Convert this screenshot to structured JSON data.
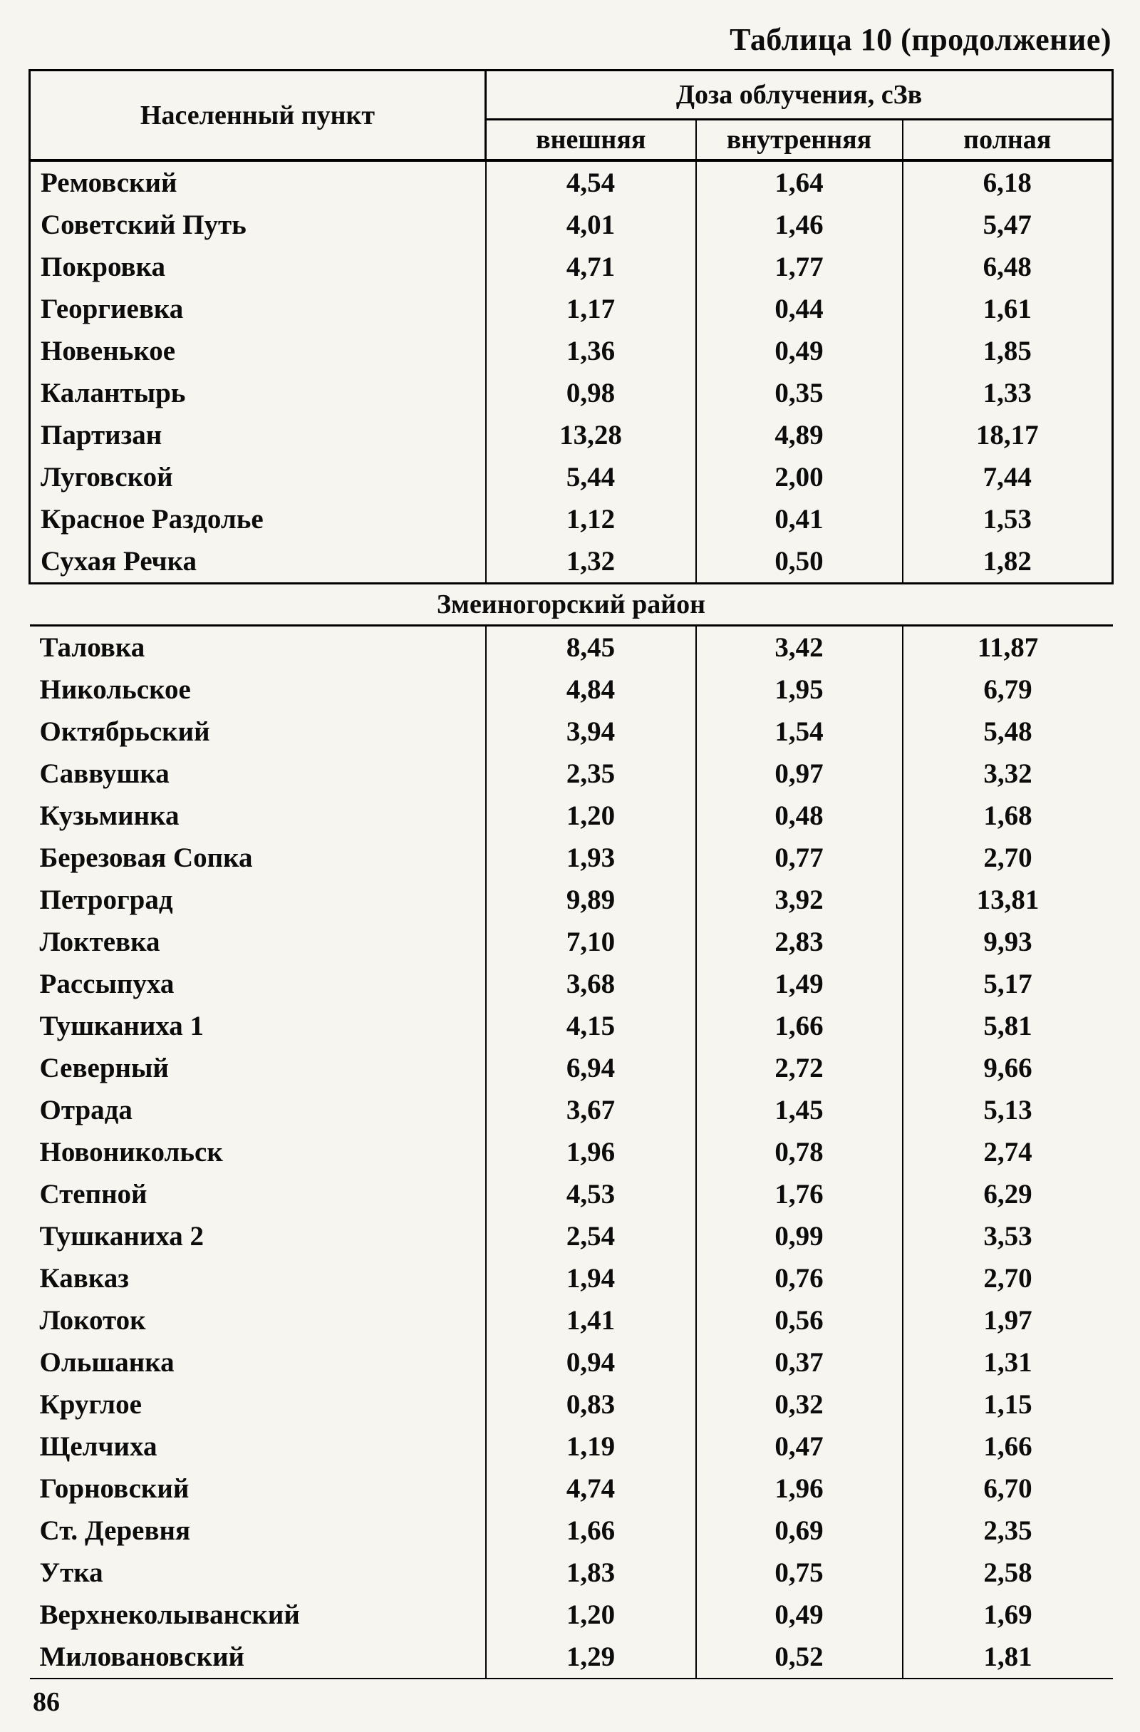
{
  "title": "Таблица 10 (продолжение)",
  "page_number": "86",
  "table": {
    "header": {
      "settlement": "Населенный пункт",
      "dose_group": "Доза облучения, сЗв",
      "sub": [
        "внешняя",
        "внутренняя",
        "полная"
      ]
    },
    "sections": [
      {
        "name": null,
        "rows": [
          [
            "Ремовский",
            "4,54",
            "1,64",
            "6,18"
          ],
          [
            "Советский Путь",
            "4,01",
            "1,46",
            "5,47"
          ],
          [
            "Покровка",
            "4,71",
            "1,77",
            "6,48"
          ],
          [
            "Георгиевка",
            "1,17",
            "0,44",
            "1,61"
          ],
          [
            "Новенькое",
            "1,36",
            "0,49",
            "1,85"
          ],
          [
            "Калантырь",
            "0,98",
            "0,35",
            "1,33"
          ],
          [
            "Партизан",
            "13,28",
            "4,89",
            "18,17"
          ],
          [
            "Луговской",
            "5,44",
            "2,00",
            "7,44"
          ],
          [
            "Красное Раздолье",
            "1,12",
            "0,41",
            "1,53"
          ],
          [
            "Сухая Речка",
            "1,32",
            "0,50",
            "1,82"
          ]
        ]
      },
      {
        "name": "Змеиногорский район",
        "rows": [
          [
            "Таловка",
            "8,45",
            "3,42",
            "11,87"
          ],
          [
            "Никольское",
            "4,84",
            "1,95",
            "6,79"
          ],
          [
            "Октябрьский",
            "3,94",
            "1,54",
            "5,48"
          ],
          [
            "Саввушка",
            "2,35",
            "0,97",
            "3,32"
          ],
          [
            "Кузьминка",
            "1,20",
            "0,48",
            "1,68"
          ],
          [
            "Березовая Сопка",
            "1,93",
            "0,77",
            "2,70"
          ],
          [
            "Петроград",
            "9,89",
            "3,92",
            "13,81"
          ],
          [
            "Локтевка",
            "7,10",
            "2,83",
            "9,93"
          ],
          [
            "Рассыпуха",
            "3,68",
            "1,49",
            "5,17"
          ],
          [
            "Тушканиха 1",
            "4,15",
            "1,66",
            "5,81"
          ],
          [
            "Северный",
            "6,94",
            "2,72",
            "9,66"
          ],
          [
            "Отрада",
            "3,67",
            "1,45",
            "5,13"
          ],
          [
            "Новоникольск",
            "1,96",
            "0,78",
            "2,74"
          ],
          [
            "Степной",
            "4,53",
            "1,76",
            "6,29"
          ],
          [
            "Тушканиха 2",
            "2,54",
            "0,99",
            "3,53"
          ],
          [
            "Кавказ",
            "1,94",
            "0,76",
            "2,70"
          ],
          [
            "Локоток",
            "1,41",
            "0,56",
            "1,97"
          ],
          [
            "Ольшанка",
            "0,94",
            "0,37",
            "1,31"
          ],
          [
            "Круглое",
            "0,83",
            "0,32",
            "1,15"
          ],
          [
            "Щелчиха",
            "1,19",
            "0,47",
            "1,66"
          ],
          [
            "Горновский",
            "4,74",
            "1,96",
            "6,70"
          ],
          [
            "Ст. Деревня",
            "1,66",
            "0,69",
            "2,35"
          ],
          [
            "Утка",
            "1,83",
            "0,75",
            "2,58"
          ],
          [
            "Верхнеколыванский",
            "1,20",
            "0,49",
            "1,69"
          ],
          [
            "Миловановский",
            "1,29",
            "0,52",
            "1,81"
          ]
        ]
      }
    ]
  }
}
